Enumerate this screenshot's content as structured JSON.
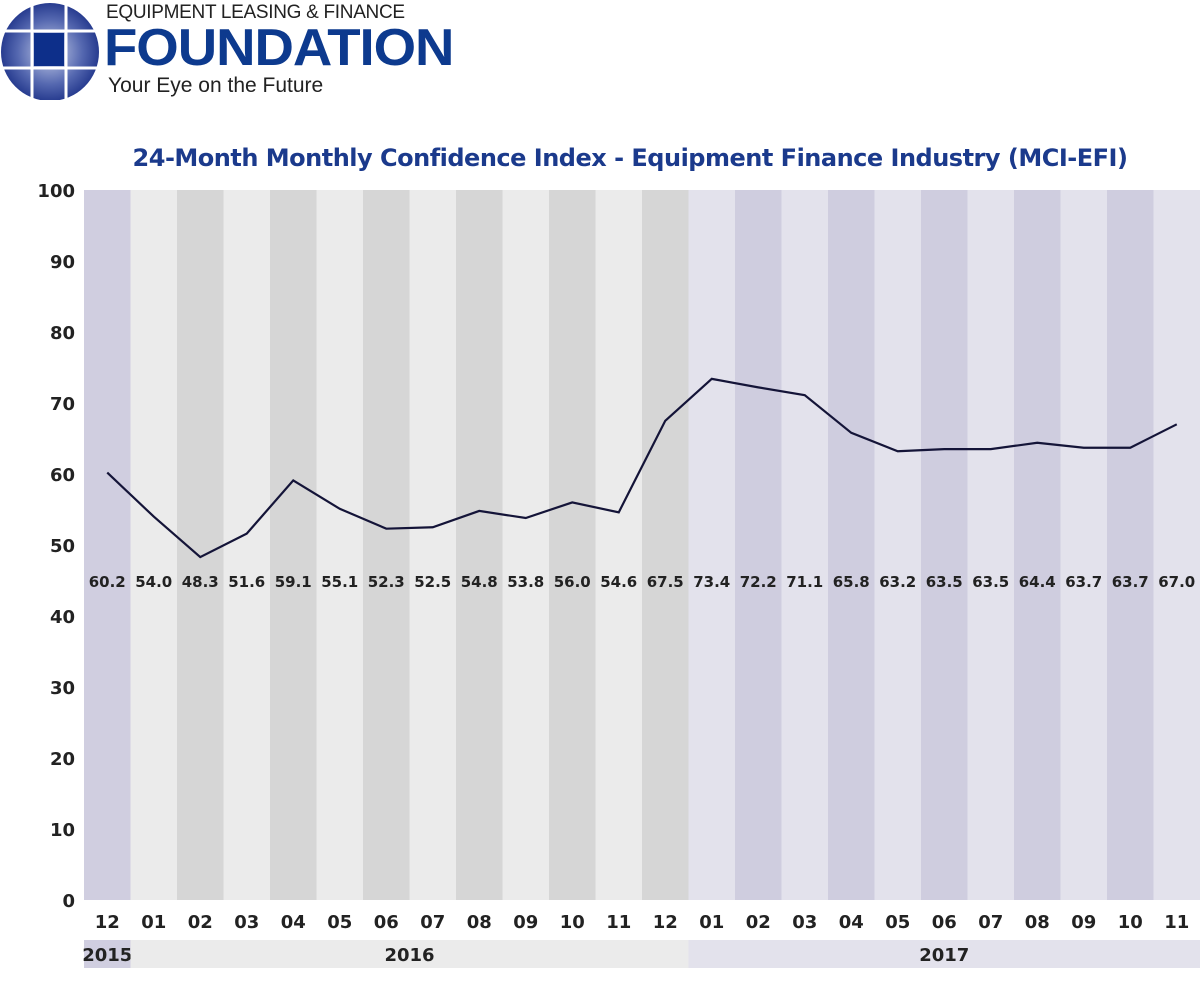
{
  "logo": {
    "top_line": "EQUIPMENT LEASING & FINANCE",
    "main": "FOUNDATION",
    "tagline": "Your Eye on the Future",
    "color": "#0d3a8e"
  },
  "chart_data": {
    "type": "line",
    "title": "24-Month Monthly Confidence Index - Equipment Finance Industry (MCI-EFI)",
    "categories": [
      "12",
      "01",
      "02",
      "03",
      "04",
      "05",
      "06",
      "07",
      "08",
      "09",
      "10",
      "11",
      "12",
      "01",
      "02",
      "03",
      "04",
      "05",
      "06",
      "07",
      "08",
      "09",
      "10",
      "11"
    ],
    "years": [
      {
        "label": "2015",
        "start": 0,
        "end": 0
      },
      {
        "label": "2016",
        "start": 1,
        "end": 12
      },
      {
        "label": "2017",
        "start": 13,
        "end": 23
      }
    ],
    "values": [
      60.2,
      54.0,
      48.3,
      51.6,
      59.1,
      55.1,
      52.3,
      52.5,
      54.8,
      53.8,
      56.0,
      54.6,
      67.5,
      73.4,
      72.2,
      71.1,
      65.8,
      63.2,
      63.5,
      63.5,
      64.4,
      63.7,
      63.7,
      67.0
    ],
    "data_labels": [
      "60.2",
      "54.0",
      "48.3",
      "51.6",
      "59.1",
      "55.1",
      "52.3",
      "52.5",
      "54.8",
      "53.8",
      "56.0",
      "54.6",
      "67.5",
      "73.4",
      "72.2",
      "71.1",
      "65.8",
      "63.2",
      "63.5",
      "63.5",
      "64.4",
      "63.7",
      "63.7",
      "67.0"
    ],
    "ylim": [
      0,
      100
    ],
    "yticks": [
      0,
      10,
      20,
      30,
      40,
      50,
      60,
      70,
      80,
      90,
      100
    ],
    "grid": false,
    "legend": "none",
    "colors": {
      "line": "#141438",
      "title": "#1b3a8c"
    }
  }
}
